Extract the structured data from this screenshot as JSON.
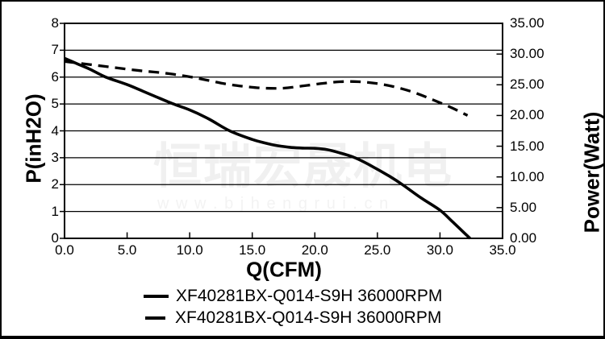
{
  "watermark": {
    "line1": "恒瑞宏晟机电",
    "line2": "w w w . b j h e n g r u i . c n"
  },
  "chart_data": {
    "type": "line",
    "title": "",
    "x_axis": {
      "label": "Q(CFM)",
      "min": 0,
      "max": 35,
      "ticks": [
        [
          0,
          "0.0"
        ],
        [
          5,
          "5.0"
        ],
        [
          10,
          "10.0"
        ],
        [
          15,
          "15.0"
        ],
        [
          20,
          "20.0"
        ],
        [
          25,
          "25.0"
        ],
        [
          30,
          "30.0"
        ],
        [
          35,
          "35.0"
        ]
      ]
    },
    "y_axis_left": {
      "label": "P(inH2O)",
      "min": 0,
      "max": 8,
      "ticks": [
        [
          8,
          "8"
        ],
        [
          7,
          "7"
        ],
        [
          6,
          "6"
        ],
        [
          5,
          "5"
        ],
        [
          4,
          "4"
        ],
        [
          3,
          "3"
        ],
        [
          2,
          "2"
        ],
        [
          1,
          "1"
        ],
        [
          0,
          "0"
        ]
      ]
    },
    "y_axis_right": {
      "label": "Power(Watt)",
      "min": 0,
      "max": 35,
      "ticks": [
        [
          35,
          "35.00"
        ],
        [
          30,
          "30.00"
        ],
        [
          25,
          "25.00"
        ],
        [
          20,
          "20.00"
        ],
        [
          15,
          "15.00"
        ],
        [
          10,
          "10.00"
        ],
        [
          5,
          "5.00"
        ],
        [
          0,
          "0.00"
        ]
      ]
    },
    "grid": "horizontal-only",
    "legend_position": "bottom",
    "colors": {
      "line": "#000000",
      "grid": "#000000",
      "watermark": "#f0f0f0"
    },
    "series": [
      {
        "name": "XF40281BX-Q014-S9H 36000RPM",
        "style": "solid",
        "axis": "left",
        "points": [
          [
            0,
            6.7
          ],
          [
            1,
            6.5
          ],
          [
            2,
            6.3
          ],
          [
            3.3,
            6.0
          ],
          [
            5,
            5.72
          ],
          [
            7,
            5.33
          ],
          [
            8.7,
            5.0
          ],
          [
            10,
            4.78
          ],
          [
            11.5,
            4.45
          ],
          [
            13.2,
            4.0
          ],
          [
            15,
            3.68
          ],
          [
            16,
            3.55
          ],
          [
            17,
            3.45
          ],
          [
            18,
            3.39
          ],
          [
            19,
            3.36
          ],
          [
            20,
            3.35
          ],
          [
            21,
            3.3
          ],
          [
            22,
            3.18
          ],
          [
            23.2,
            3.0
          ],
          [
            24.5,
            2.7
          ],
          [
            26,
            2.3
          ],
          [
            27,
            2.0
          ],
          [
            28.5,
            1.5
          ],
          [
            30,
            1.05
          ],
          [
            31,
            0.62
          ],
          [
            32.4,
            0
          ]
        ]
      },
      {
        "name": "XF40281BX-Q014-S9H 36000RPM",
        "style": "dashed",
        "axis": "right",
        "points": [
          [
            0,
            28.8
          ],
          [
            2,
            28.3
          ],
          [
            4,
            27.8
          ],
          [
            6,
            27.3
          ],
          [
            8,
            26.9
          ],
          [
            10,
            26.3
          ],
          [
            11.5,
            25.7
          ],
          [
            13,
            25.1
          ],
          [
            14.5,
            24.7
          ],
          [
            16,
            24.45
          ],
          [
            17.5,
            24.45
          ],
          [
            19,
            24.8
          ],
          [
            20.5,
            25.2
          ],
          [
            22,
            25.5
          ],
          [
            23.5,
            25.5
          ],
          [
            25,
            25.2
          ],
          [
            26.5,
            24.6
          ],
          [
            28,
            23.7
          ],
          [
            29.5,
            22.5
          ],
          [
            31,
            21.2
          ],
          [
            32.2,
            20.0
          ]
        ]
      }
    ],
    "legend": [
      "XF40281BX-Q014-S9H 36000RPM",
      "XF40281BX-Q014-S9H 36000RPM"
    ]
  }
}
